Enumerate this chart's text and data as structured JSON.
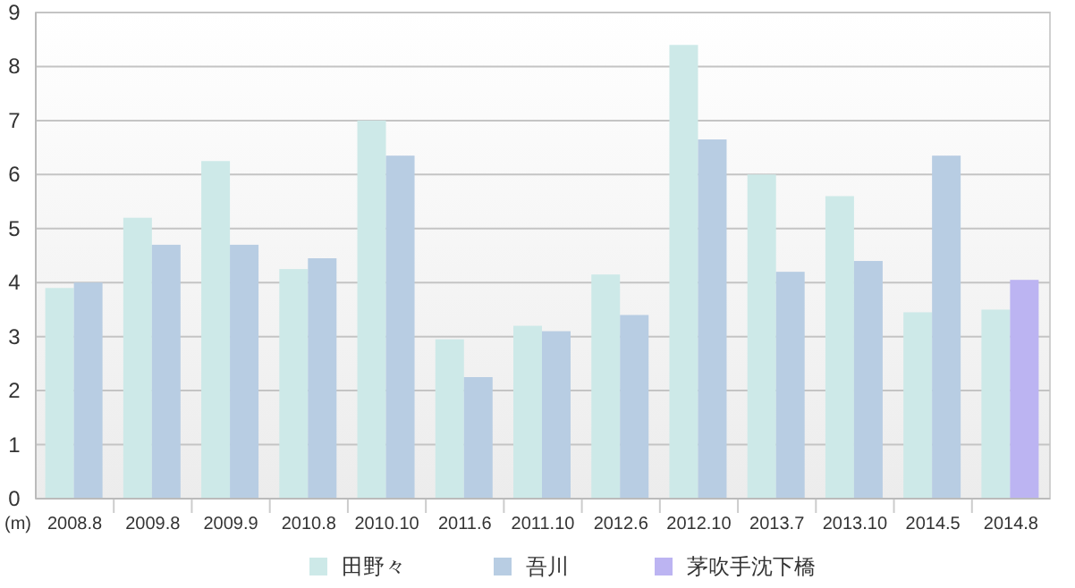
{
  "chart_data": {
    "type": "bar",
    "ylabel": "(m)",
    "categories": [
      "2008.8",
      "2009.8",
      "2009.9",
      "2010.8",
      "2010.10",
      "2011.6",
      "2011.10",
      "2012.6",
      "2012.10",
      "2013.7",
      "2013.10",
      "2014.5",
      "2014.8"
    ],
    "series": [
      {
        "name": "田野々",
        "color": "#cde9e8",
        "values": [
          3.9,
          5.2,
          6.25,
          4.25,
          7.0,
          2.95,
          3.2,
          4.15,
          8.4,
          6.0,
          5.6,
          3.45,
          3.5
        ]
      },
      {
        "name": "吾川",
        "color": "#b8cde3",
        "values": [
          4.0,
          4.7,
          4.7,
          4.45,
          6.35,
          2.25,
          3.1,
          3.4,
          6.65,
          4.2,
          4.4,
          6.35,
          null
        ]
      },
      {
        "name": "茅吹手沈下橋",
        "color": "#bcb4f2",
        "values": [
          null,
          null,
          null,
          null,
          null,
          null,
          null,
          null,
          null,
          null,
          null,
          null,
          4.05
        ]
      }
    ],
    "ylim": [
      0,
      9
    ],
    "yticks": [
      0,
      1,
      2,
      3,
      4,
      5,
      6,
      7,
      8,
      9
    ],
    "grid": "y",
    "legend": "bottom"
  }
}
